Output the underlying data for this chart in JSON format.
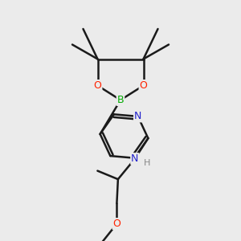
{
  "background_color": "#ebebeb",
  "atom_colors": {
    "B": "#00aa00",
    "O": "#ff2200",
    "N": "#2222cc",
    "H": "#888888",
    "C": "#000000"
  },
  "bond_color": "#1a1a1a",
  "bond_width": 1.8,
  "dbl_sep": 0.12,
  "figsize": [
    3.0,
    3.0
  ],
  "dpi": 100
}
